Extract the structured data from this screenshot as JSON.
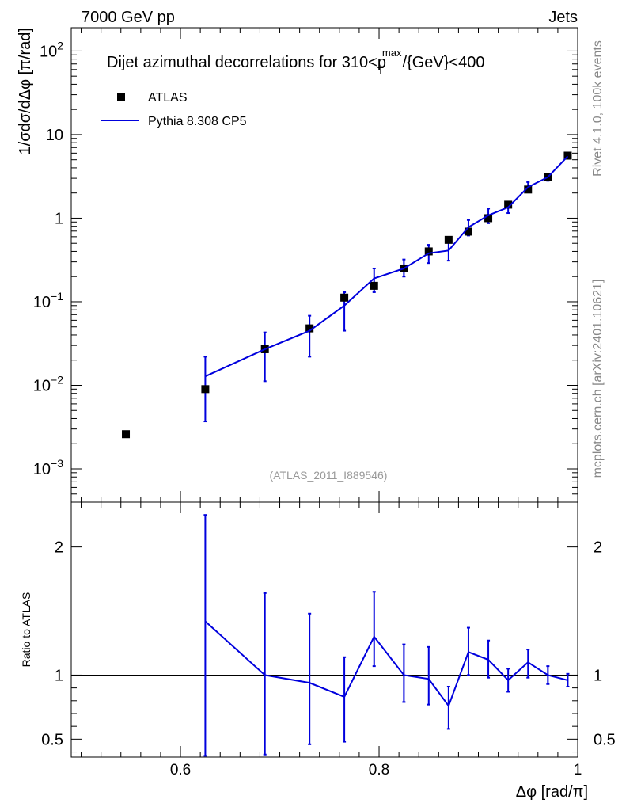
{
  "header": {
    "left": "7000 GeV pp",
    "right": "Jets"
  },
  "side": {
    "rivet": "Rivet 4.1.0,  100k events",
    "mcplots": "mcplots.cern.ch [arXiv:2401.10621]"
  },
  "chart_data": {
    "type": "scatter",
    "title_main": "Dijet azimuthal decorrelations for 310<p",
    "title_sup": "max",
    "title_sub": "T",
    "title_tail": "/{GeV}<400",
    "analysis": "(ATLAS_2011_I889546)",
    "ylabel": "1/σdσ/dΔφ [π/rad]",
    "xlabel": "Δφ [rad/π]",
    "ratio_ylabel": "Ratio to ATLAS",
    "xlim": [
      0.49,
      1.0
    ],
    "ylim": [
      0.0004,
      190
    ],
    "ratio_ylim": [
      0.36,
      2.35
    ],
    "x_ticks": [
      {
        "value": 0.6,
        "label": "0.6"
      },
      {
        "value": 0.8,
        "label": "0.8"
      },
      {
        "value": 1.0,
        "label": "1"
      }
    ],
    "y_ticks": [
      {
        "value": 0.001,
        "base": "10",
        "exp": "−3"
      },
      {
        "value": 0.01,
        "base": "10",
        "exp": "−2"
      },
      {
        "value": 0.1,
        "base": "10",
        "exp": "−1"
      },
      {
        "value": 1,
        "base": "1",
        "exp": ""
      },
      {
        "value": 10,
        "base": "10",
        "exp": ""
      },
      {
        "value": 100,
        "base": "10",
        "exp": "2"
      }
    ],
    "ratio_ticks": [
      {
        "value": 0.5,
        "label": "0.5"
      },
      {
        "value": 1,
        "label": "1"
      },
      {
        "value": 2,
        "label": "2"
      }
    ],
    "legend": [
      {
        "name": "ATLAS",
        "kind": "marker",
        "color": "#000000"
      },
      {
        "name": "Pythia 8.308 CP5",
        "kind": "line",
        "color": "#0000dd"
      }
    ],
    "series": [
      {
        "name": "ATLAS",
        "x": [
          0.545,
          0.625,
          0.685,
          0.73,
          0.765,
          0.795,
          0.825,
          0.85,
          0.87,
          0.89,
          0.91,
          0.93,
          0.95,
          0.97,
          0.99
        ],
        "y": [
          0.0026,
          0.009,
          0.027,
          0.048,
          0.112,
          0.155,
          0.25,
          0.4,
          0.55,
          0.69,
          1.0,
          1.45,
          2.2,
          3.1,
          5.6
        ]
      },
      {
        "name": "Pythia 8.308 CP5",
        "x": [
          0.625,
          0.685,
          0.73,
          0.765,
          0.795,
          0.825,
          0.85,
          0.87,
          0.89,
          0.91,
          0.93,
          0.95,
          0.97,
          0.99
        ],
        "y": [
          0.0128,
          0.027,
          0.045,
          0.09,
          0.19,
          0.25,
          0.38,
          0.41,
          0.78,
          1.08,
          1.35,
          2.35,
          3.1,
          5.5
        ],
        "err_lo": [
          0.0037,
          0.0112,
          0.022,
          0.045,
          0.13,
          0.2,
          0.29,
          0.31,
          0.62,
          0.87,
          1.15,
          2.05,
          2.8,
          5.15
        ],
        "err_hi": [
          0.022,
          0.043,
          0.068,
          0.13,
          0.25,
          0.32,
          0.48,
          0.51,
          0.95,
          1.3,
          1.55,
          2.7,
          3.4,
          5.8
        ]
      }
    ],
    "ratio": {
      "x": [
        0.625,
        0.685,
        0.73,
        0.765,
        0.795,
        0.825,
        0.85,
        0.87,
        0.89,
        0.91,
        0.93,
        0.95,
        0.97,
        0.99
      ],
      "y": [
        1.42,
        1.0,
        0.94,
        0.83,
        1.3,
        1.0,
        0.97,
        0.76,
        1.18,
        1.12,
        0.96,
        1.1,
        1.0,
        0.96
      ],
      "err_lo": [
        0.37,
        0.38,
        0.46,
        0.48,
        1.07,
        0.79,
        0.77,
        0.58,
        1.0,
        0.98,
        0.87,
        0.98,
        0.93,
        0.91
      ],
      "err_hi": [
        2.25,
        1.64,
        1.48,
        1.14,
        1.65,
        1.24,
        1.22,
        0.91,
        1.37,
        1.27,
        1.05,
        1.2,
        1.07,
        1.01
      ]
    }
  }
}
